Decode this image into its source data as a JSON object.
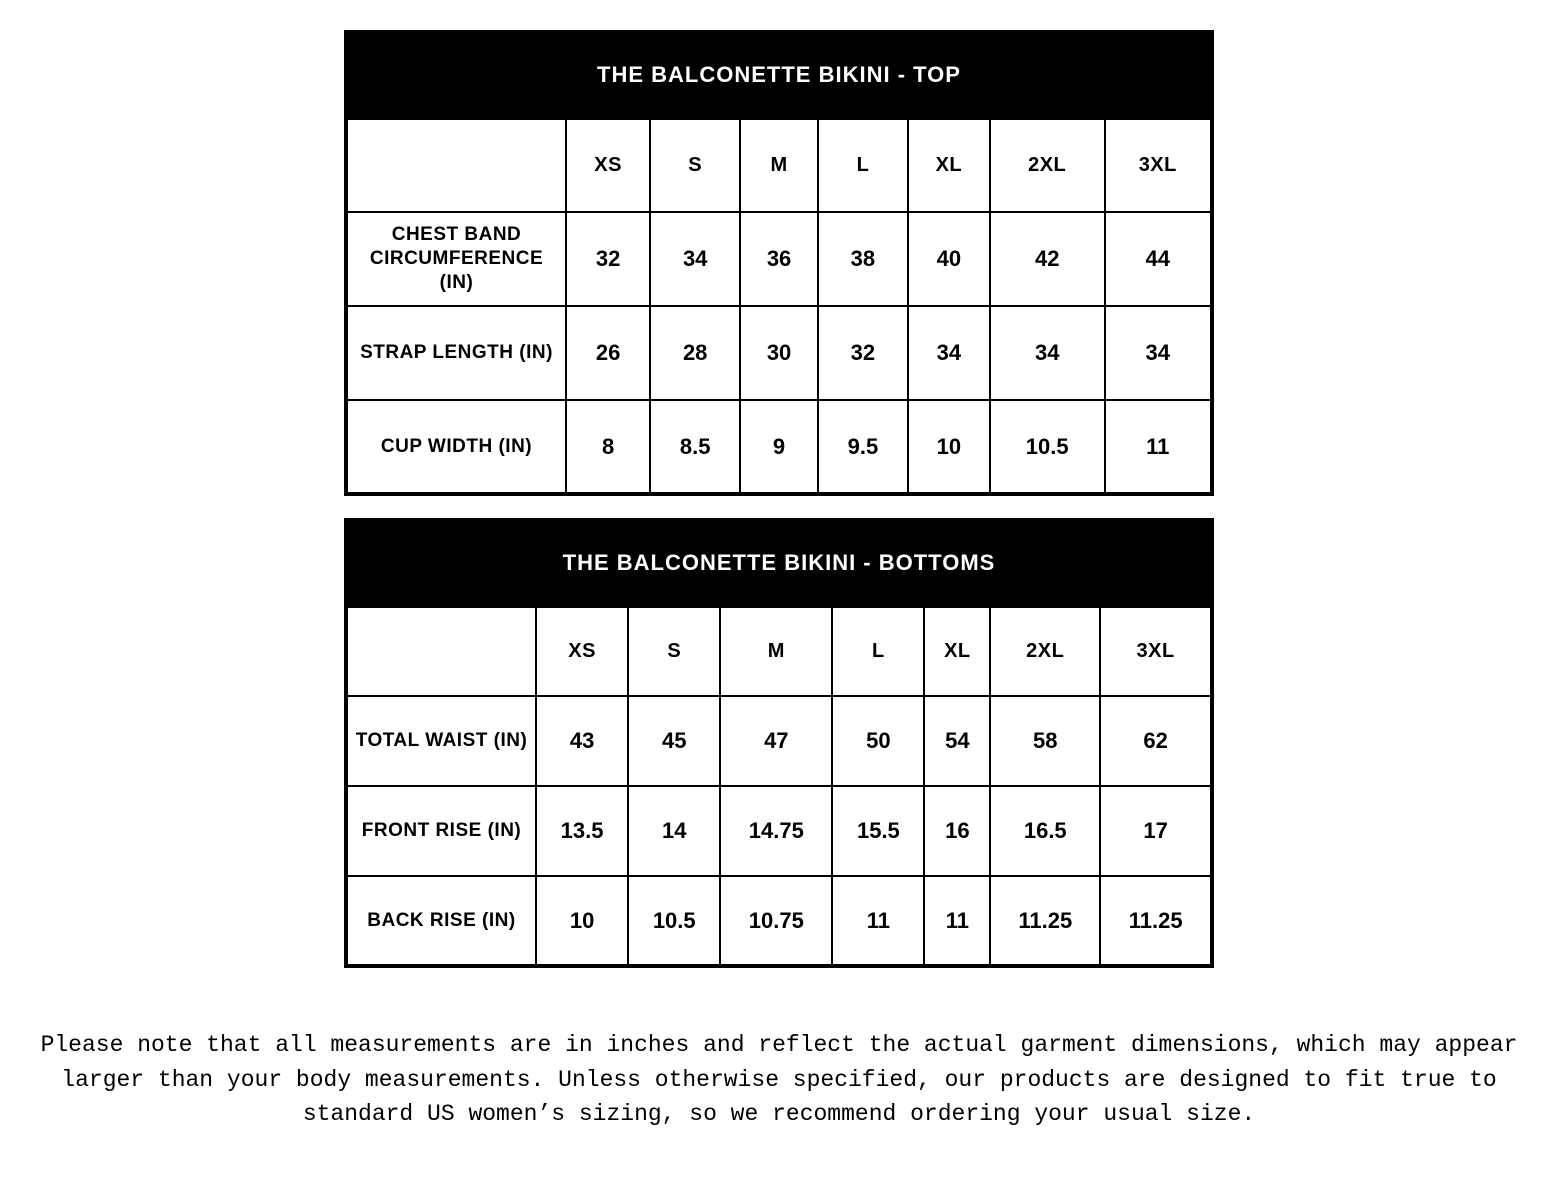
{
  "colors": {
    "header_bg": "#000000",
    "header_text": "#ffffff",
    "border": "#000000",
    "page_bg": "#ffffff",
    "cell_text": "#000000"
  },
  "typography": {
    "heading_font": "Arial Black",
    "body_font": "Arial",
    "footnote_font": "Courier New",
    "caption_fontsize_pt": 16,
    "header_fontsize_pt": 15,
    "cell_fontsize_pt": 16,
    "footnote_fontsize_pt": 17
  },
  "tables": [
    {
      "title": "THE BALCONETTE BIKINI - TOP",
      "columns": [
        "XS",
        "S",
        "M",
        "L",
        "XL",
        "2XL",
        "3XL"
      ],
      "rows": [
        {
          "label": "CHEST BAND CIRCUMFERENCE (IN)",
          "values": [
            "32",
            "34",
            "36",
            "38",
            "40",
            "42",
            "44"
          ]
        },
        {
          "label": "STRAP LENGTH (IN)",
          "values": [
            "26",
            "28",
            "30",
            "32",
            "34",
            "34",
            "34"
          ]
        },
        {
          "label": "CUP WIDTH (IN)",
          "values": [
            "8",
            "8.5",
            "9",
            "9.5",
            "10",
            "10.5",
            "11"
          ]
        }
      ]
    },
    {
      "title": "THE BALCONETTE BIKINI - BOTTOMS",
      "columns": [
        "XS",
        "S",
        "M",
        "L",
        "XL",
        "2XL",
        "3XL"
      ],
      "rows": [
        {
          "label": "TOTAL WAIST (IN)",
          "values": [
            "43",
            "45",
            "47",
            "50",
            "54",
            "58",
            "62"
          ]
        },
        {
          "label": "FRONT RISE (IN)",
          "values": [
            "13.5",
            "14",
            "14.75",
            "15.5",
            "16",
            "16.5",
            "17"
          ]
        },
        {
          "label": "BACK RISE (IN)",
          "values": [
            "10",
            "10.5",
            "10.75",
            "11",
            "11",
            "11.25",
            "11.25"
          ]
        }
      ]
    }
  ],
  "footnote": "Please note that all measurements are in inches and reflect the actual garment dimensions, which may appear larger than your body measurements. Unless otherwise specified, our products are designed to fit true to standard US women’s sizing, so we recommend ordering your usual size."
}
